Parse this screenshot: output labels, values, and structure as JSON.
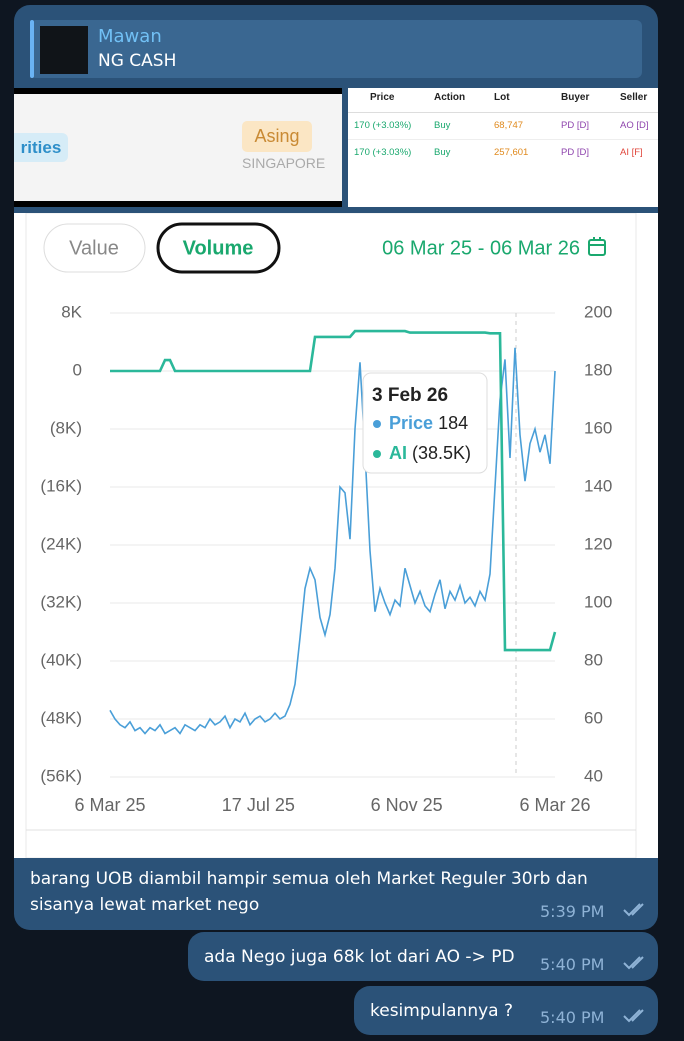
{
  "reply": {
    "name": "Mawan",
    "text": "NG CASH"
  },
  "image_crop": {
    "badge": "rities",
    "tag": "Asing",
    "country": "SINGAPORE"
  },
  "table": {
    "headers": [
      "Price",
      "Action",
      "Lot",
      "Buyer",
      "Seller"
    ],
    "rows": [
      [
        "170 (+3.03%)",
        "Buy",
        "68,747",
        "PD [D]",
        "AO [D]"
      ],
      [
        "170 (+3.03%)",
        "Buy",
        "257,601",
        "PD [D]",
        "AI [F]"
      ]
    ]
  },
  "chart_data": {
    "type": "line",
    "tabs": [
      "Value",
      "Volume"
    ],
    "date_range": "06 Mar 25 - 06 Mar 26",
    "x_labels": [
      "6 Mar 25",
      "17 Jul 25",
      "6 Nov 25",
      "6 Mar 26"
    ],
    "ylim": [
      -56000,
      8000
    ],
    "yticks": [
      {
        "value": 8000,
        "label": "8K"
      },
      0,
      {
        "value": -8000,
        "label": "(8K)"
      },
      {
        "value": -16000,
        "label": "(16K)"
      },
      {
        "value": -24000,
        "label": "(24K)"
      },
      {
        "value": -32000,
        "label": "(32K)"
      },
      {
        "value": -40000,
        "label": "(40K)"
      },
      {
        "value": -48000,
        "label": "(48K)"
      },
      {
        "value": -56000,
        "label": "(56K)"
      }
    ],
    "y2lim": [
      40,
      200
    ],
    "y2ticks": [
      200,
      180,
      160,
      140,
      120,
      100,
      80,
      60,
      40
    ],
    "grid": true,
    "series": [
      {
        "name": "Price",
        "color": "#4a9fd8",
        "axis": "y2",
        "values": [
          63,
          60,
          58,
          57,
          59,
          56,
          57,
          55,
          57,
          56,
          58,
          55,
          56,
          57,
          55,
          58,
          57,
          56,
          58,
          57,
          60,
          58,
          59,
          61,
          57,
          60,
          59,
          62,
          58,
          60,
          61,
          59,
          60,
          62,
          60,
          61,
          65,
          72,
          88,
          105,
          112,
          108,
          95,
          89,
          96,
          112,
          140,
          138,
          122,
          160,
          183,
          152,
          118,
          97,
          105,
          100,
          96,
          101,
          99,
          112,
          106,
          100,
          104,
          99,
          97,
          103,
          108,
          98,
          104,
          101,
          106,
          100,
          102,
          99,
          104,
          101,
          110,
          140,
          170,
          184,
          150,
          188,
          158,
          142,
          155,
          160,
          152,
          158,
          148,
          180
        ]
      },
      {
        "name": "AI",
        "color": "#2bb89a",
        "values": [
          0,
          0,
          0,
          0,
          0,
          0,
          0,
          0,
          0,
          0,
          0,
          1500,
          1500,
          0,
          0,
          0,
          0,
          0,
          0,
          0,
          0,
          0,
          0,
          0,
          0,
          0,
          0,
          0,
          0,
          0,
          0,
          0,
          0,
          0,
          0,
          0,
          0,
          0,
          0,
          0,
          0,
          4700,
          4700,
          4700,
          4700,
          4700,
          4700,
          4700,
          4700,
          5500,
          5500,
          5500,
          5500,
          5500,
          5500,
          5500,
          5500,
          5500,
          5500,
          5500,
          5300,
          5300,
          5300,
          5300,
          5300,
          5300,
          5300,
          5300,
          5300,
          5300,
          5300,
          5300,
          5300,
          5300,
          5300,
          5300,
          5200,
          5200,
          5200,
          -38500,
          -38500,
          -38500,
          -38500,
          -38500,
          -38500,
          -38500,
          -38500,
          -38500,
          -38500,
          -36000
        ]
      }
    ],
    "tooltip": {
      "date": "3 Feb 26",
      "price_label": "Price",
      "price": 184,
      "ai_label": "AI",
      "ai": {
        "value": -38500,
        "label": "(38.5K)"
      }
    }
  },
  "messages": [
    {
      "text": "barang UOB diambil hampir semua oleh Market Reguler 30rb dan sisanya lewat market nego",
      "time": "5:39 PM"
    },
    {
      "text": "ada Nego juga 68k lot dari AO -> PD",
      "time": "5:40 PM"
    },
    {
      "text": "kesimpulannya ?",
      "time": "5:40 PM"
    }
  ]
}
